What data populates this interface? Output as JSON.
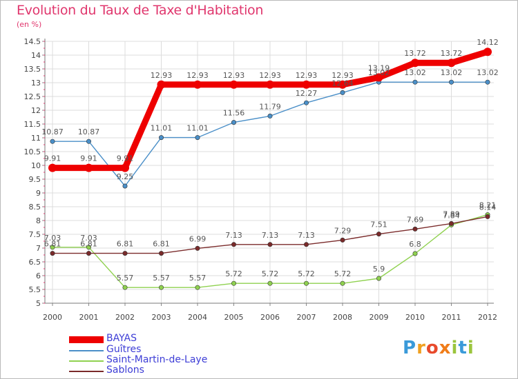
{
  "header": {
    "title": "Evolution du Taux de Taxe d'Habitation",
    "subtitle": "(en %)"
  },
  "logo": {
    "text": "Proxiti",
    "letters": [
      "P",
      "r",
      "o",
      "x",
      "i",
      "t",
      "i"
    ],
    "colors": [
      "#3a9ad9",
      "#f0a020",
      "#e84a2c",
      "#f07d1a",
      "#9bc53d",
      "#3a9ad9",
      "#9bc53d"
    ]
  },
  "chart_data": {
    "type": "line",
    "title": "Evolution du Taux de Taxe d'Habitation",
    "ylabel": "(en %)",
    "xlabel": "",
    "x": [
      "2000",
      "2001",
      "2002",
      "2003",
      "2004",
      "2005",
      "2006",
      "2007",
      "2008",
      "2009",
      "2010",
      "2011",
      "2012"
    ],
    "ylim": [
      5,
      14.5
    ],
    "yticks": [
      "5",
      "5.5",
      "6",
      "6.5",
      "7",
      "7.5",
      "8",
      "8.5",
      "9",
      "9.5",
      "10",
      "10.5",
      "11",
      "11.5",
      "12",
      "12.5",
      "13",
      "13.5",
      "14",
      "14.5"
    ],
    "grid": true,
    "legend_position": "bottom-left",
    "series": [
      {
        "name": "BAYAS",
        "color": "#ee0000",
        "values": [
          9.91,
          9.91,
          9.91,
          12.93,
          12.93,
          12.93,
          12.93,
          12.93,
          12.93,
          13.19,
          13.72,
          13.72,
          14.12
        ],
        "labels": [
          "9.91",
          "9.91",
          "9.91",
          "12.93",
          "12.93",
          "12.93",
          "12.93",
          "12.93",
          "12.93",
          "13.19",
          "13.72",
          "13.72",
          "14.12"
        ]
      },
      {
        "name": "Guîtres",
        "color": "#4a8fc8",
        "values": [
          10.87,
          10.87,
          9.25,
          11.01,
          11.01,
          11.56,
          11.79,
          12.27,
          12.64,
          13.02,
          13.02,
          13.02,
          13.02
        ],
        "labels": [
          "10.87",
          "10.87",
          "9.25",
          "11.01",
          "11.01",
          "11.56",
          "11.79",
          "12.27",
          "12.64",
          "13.02",
          "13.02",
          "13.02",
          "13.02"
        ]
      },
      {
        "name": "Saint-Martin-de-Laye",
        "color": "#8fd14f",
        "values": [
          7.03,
          7.03,
          5.57,
          5.57,
          5.57,
          5.72,
          5.72,
          5.72,
          5.72,
          5.9,
          6.8,
          7.84,
          8.21
        ],
        "labels": [
          "7.03",
          "7.03",
          "5.57",
          "5.57",
          "5.57",
          "5.72",
          "5.72",
          "5.72",
          "5.72",
          "5.9",
          "6.8",
          "7.84",
          "8.21"
        ]
      },
      {
        "name": "Sablons",
        "color": "#7a2a2a",
        "values": [
          6.81,
          6.81,
          6.81,
          6.81,
          6.99,
          7.13,
          7.13,
          7.13,
          7.29,
          7.51,
          7.69,
          7.89,
          8.14
        ],
        "labels": [
          "6.81",
          "6.81",
          "6.81",
          "6.81",
          "6.99",
          "7.13",
          "7.13",
          "7.13",
          "7.29",
          "7.51",
          "7.69",
          "7.89",
          "8.14"
        ]
      }
    ]
  }
}
